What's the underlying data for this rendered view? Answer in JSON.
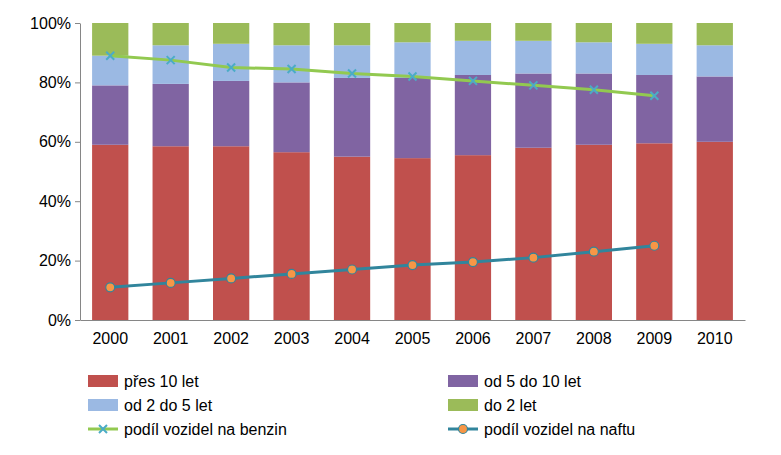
{
  "chart_data": {
    "type": "bar",
    "stacked": true,
    "categories": [
      "2000",
      "2001",
      "2002",
      "2003",
      "2004",
      "2005",
      "2006",
      "2007",
      "2008",
      "2009",
      "2010"
    ],
    "ylim": [
      0,
      100
    ],
    "yticks": [
      {
        "value": 0,
        "label": "0%"
      },
      {
        "value": 20,
        "label": "20%"
      },
      {
        "value": 40,
        "label": "40%"
      },
      {
        "value": 60,
        "label": "60%"
      },
      {
        "value": 80,
        "label": "80%"
      },
      {
        "value": 100,
        "label": "100%"
      }
    ],
    "grid": false,
    "legend": "bottom",
    "series": [
      {
        "name": "přes 10 let",
        "type": "bar",
        "color": "#C0504D",
        "values": [
          59,
          58.5,
          58.5,
          56.5,
          55,
          54.5,
          55.5,
          58,
          59,
          59.5,
          60
        ]
      },
      {
        "name": "od 5 do 10 let",
        "type": "bar",
        "color": "#8064A2",
        "values": [
          20,
          21,
          22,
          23.5,
          26.5,
          27,
          27,
          25,
          24,
          23,
          22
        ]
      },
      {
        "name": "od 2 do 5 let",
        "type": "bar",
        "color": "#9BB9E3",
        "values": [
          10,
          13,
          12.5,
          12.5,
          11,
          12,
          11.5,
          11,
          10.5,
          10.5,
          10.5
        ]
      },
      {
        "name": "do 2 let",
        "type": "bar",
        "color": "#9BBB59",
        "values": [
          11,
          7.5,
          7,
          7.5,
          7.5,
          6.5,
          6,
          6,
          6.5,
          7,
          7.5
        ]
      },
      {
        "name": "podíl vozidel na benzin",
        "type": "line",
        "color": "#92C950",
        "marker": "x",
        "values": [
          89,
          87.5,
          85,
          84.5,
          83,
          82,
          80.5,
          79,
          77.5,
          75.5,
          null
        ]
      },
      {
        "name": "podíl vozidel na naftu",
        "type": "line",
        "color": "#31859C",
        "marker": "circle",
        "values": [
          11,
          12.5,
          14,
          15.5,
          17,
          18.5,
          19.5,
          21,
          23,
          25,
          null
        ]
      }
    ]
  }
}
